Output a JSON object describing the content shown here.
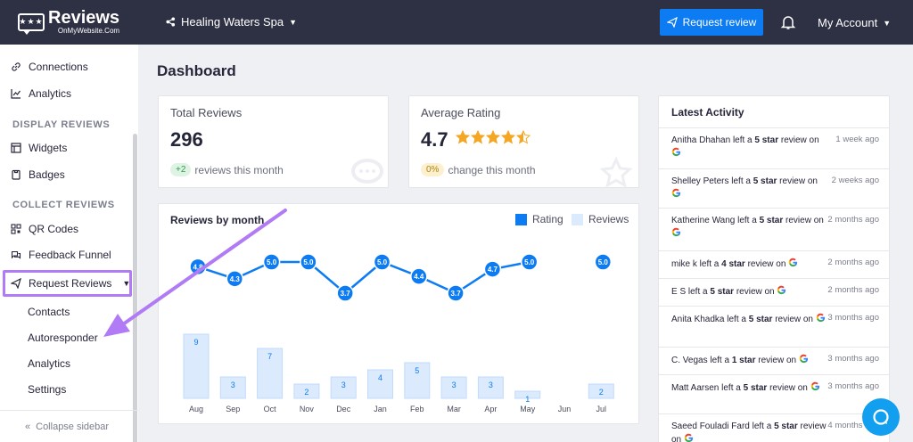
{
  "header": {
    "logo_main": "Reviews",
    "logo_sub": "OnMyWebsite.Com",
    "business": "Healing Waters Spa",
    "request_button": "Request review",
    "account": "My Account"
  },
  "sidebar": {
    "top_items": [
      {
        "label": "Connections",
        "icon": "link-icon"
      },
      {
        "label": "Analytics",
        "icon": "chart-line-icon"
      }
    ],
    "display_heading": "DISPLAY REVIEWS",
    "display_items": [
      {
        "label": "Widgets",
        "icon": "widgets-icon"
      },
      {
        "label": "Badges",
        "icon": "badge-icon"
      }
    ],
    "collect_heading": "COLLECT REVIEWS",
    "collect_items": [
      {
        "label": "QR Codes",
        "icon": "qr-code-icon"
      },
      {
        "label": "Feedback Funnel",
        "icon": "chat-icon"
      },
      {
        "label": "Request Reviews",
        "icon": "paper-plane-icon"
      }
    ],
    "sub_items": [
      "Contacts",
      "Autoresponder",
      "Analytics",
      "Settings"
    ],
    "collapse": "Collapse sidebar"
  },
  "main": {
    "title": "Dashboard",
    "total_reviews": {
      "label": "Total Reviews",
      "value": "296",
      "pill": "+2",
      "note": "reviews this month"
    },
    "average_rating": {
      "label": "Average Rating",
      "value": "4.7",
      "pill": "0%",
      "note": "change this month",
      "stars": 4.5
    }
  },
  "chart_data": {
    "type": "bar",
    "title": "Reviews by month",
    "legend": [
      "Rating",
      "Reviews"
    ],
    "categories": [
      "Aug",
      "Sep",
      "Oct",
      "Nov",
      "Dec",
      "Jan",
      "Feb",
      "Mar",
      "Apr",
      "May",
      "Jun",
      "Jul"
    ],
    "series": [
      {
        "name": "Reviews",
        "type": "bar",
        "values": [
          9,
          3,
          7,
          2,
          3,
          4,
          5,
          3,
          3,
          1,
          0,
          2
        ],
        "labels": [
          "9",
          "3",
          "7",
          "2",
          "3",
          "4",
          "5",
          "3",
          "3",
          "1",
          "",
          "2"
        ]
      },
      {
        "name": "Rating",
        "type": "line",
        "values": [
          4.8,
          4.3,
          5.0,
          5.0,
          3.7,
          5.0,
          4.4,
          3.7,
          4.7,
          5.0,
          null,
          5.0
        ],
        "labels": [
          "4.8",
          "4.3",
          "5.0",
          "5.0",
          "3.7",
          "5.0",
          "4.4",
          "3.7",
          "4.7",
          "5.0",
          "",
          "5.0"
        ]
      }
    ],
    "colors": {
      "rating": "#0d7bf2",
      "reviews": "#dbeafc"
    }
  },
  "activity": {
    "title": "Latest Activity",
    "items": [
      {
        "pre": "Anitha Dhahan left a ",
        "bold": "5 star",
        "post": " review on",
        "time": "1 week ago"
      },
      {
        "pre": "Shelley Peters left a ",
        "bold": "5 star",
        "post": " review on",
        "time": "2 weeks ago"
      },
      {
        "pre": "Katherine Wang left a ",
        "bold": "5 star",
        "post": " review on",
        "time": "2 months ago"
      },
      {
        "pre": "mike k left a ",
        "bold": "4 star",
        "post": " review on",
        "time": "2 months ago"
      },
      {
        "pre": "E S left a ",
        "bold": "5 star",
        "post": " review on",
        "time": "2 months ago"
      },
      {
        "pre": "Anita Khadka left a ",
        "bold": "5 star",
        "post": " review on",
        "time": "3 months ago"
      },
      {
        "pre": "C. Vegas left a ",
        "bold": "1 star",
        "post": " review on",
        "time": "3 months ago"
      },
      {
        "pre": "Matt Aarsen left a ",
        "bold": "5 star",
        "post": " review on",
        "time": "3 months ago"
      },
      {
        "pre": "Saeed Fouladi Fard left a ",
        "bold": "5 star",
        "post": " review on",
        "time": "4 months ago"
      }
    ]
  },
  "colors": {
    "accent": "#0d7bf2",
    "topbar": "#2e3044",
    "highlight": "#b07bf4"
  }
}
